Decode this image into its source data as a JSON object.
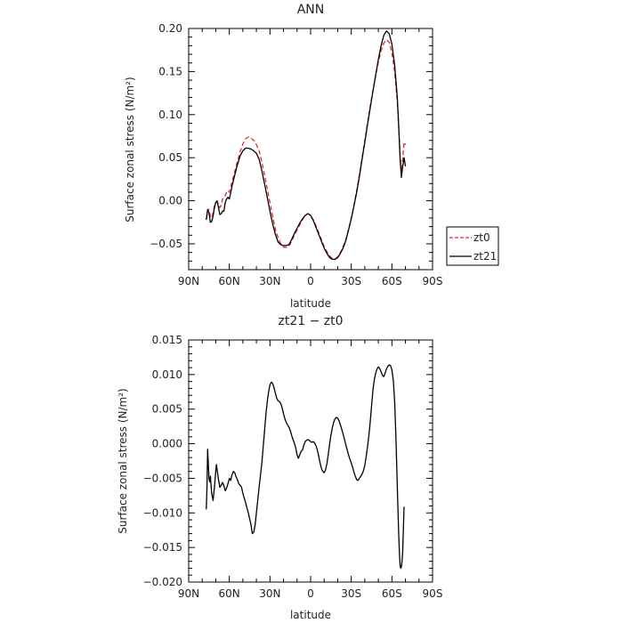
{
  "chart_data": [
    {
      "type": "line",
      "title": "ANN",
      "xlabel": "latitude",
      "ylabel": "Surface zonal stress (N/m²)",
      "xlim": [
        90,
        -90
      ],
      "ylim": [
        -0.08,
        0.2
      ],
      "x_ticks": [
        90,
        60,
        30,
        0,
        -30,
        -60,
        -90
      ],
      "x_tick_labels": [
        "90N",
        "60N",
        "30N",
        "0",
        "30S",
        "60S",
        "90S"
      ],
      "y_ticks": [
        -0.05,
        0.0,
        0.05,
        0.1,
        0.15,
        0.2
      ],
      "y_tick_labels": [
        "−0.05",
        "0.00",
        "0.05",
        "0.10",
        "0.15",
        "0.20"
      ],
      "legend_position": "outside-right-bottom",
      "series": [
        {
          "name": "zt0",
          "color": "#e8282c",
          "dash": "dashed",
          "x": [
            77,
            76,
            75,
            74,
            73,
            72,
            71,
            70,
            69,
            68,
            67,
            66,
            65,
            64,
            63,
            62,
            61,
            60,
            58,
            56,
            54,
            52,
            50,
            48,
            46,
            44,
            42,
            40,
            38,
            36,
            34,
            32,
            30,
            28,
            26,
            24,
            22,
            20,
            18,
            16,
            14,
            12,
            10,
            8,
            6,
            4,
            2,
            0,
            -2,
            -4,
            -6,
            -8,
            -10,
            -12,
            -14,
            -16,
            -18,
            -20,
            -22,
            -24,
            -26,
            -28,
            -30,
            -32,
            -34,
            -36,
            -38,
            -40,
            -42,
            -44,
            -46,
            -48,
            -50,
            -52,
            -54,
            -56,
            -58,
            -60,
            -62,
            -64,
            -65,
            -66,
            -67,
            -68,
            -69,
            -70
          ],
          "y": [
            -0.022,
            -0.012,
            -0.01,
            -0.018,
            -0.02,
            -0.014,
            -0.006,
            -0.003,
            -0.001,
            -0.004,
            -0.008,
            -0.005,
            0.002,
            0.004,
            0.006,
            0.01,
            0.012,
            0.01,
            0.022,
            0.034,
            0.046,
            0.057,
            0.066,
            0.072,
            0.074,
            0.073,
            0.07,
            0.065,
            0.058,
            0.045,
            0.03,
            0.014,
            -0.002,
            -0.018,
            -0.033,
            -0.043,
            -0.05,
            -0.054,
            -0.054,
            -0.053,
            -0.047,
            -0.04,
            -0.034,
            -0.028,
            -0.022,
            -0.017,
            -0.015,
            -0.017,
            -0.022,
            -0.029,
            -0.037,
            -0.045,
            -0.053,
            -0.059,
            -0.064,
            -0.067,
            -0.068,
            -0.065,
            -0.06,
            -0.053,
            -0.045,
            -0.033,
            -0.02,
            -0.005,
            0.012,
            0.03,
            0.05,
            0.07,
            0.09,
            0.11,
            0.128,
            0.145,
            0.161,
            0.174,
            0.183,
            0.187,
            0.184,
            0.172,
            0.15,
            0.115,
            0.088,
            0.055,
            0.03,
            0.048,
            0.068,
            0.065
          ]
        },
        {
          "name": "zt21",
          "color": "#000000",
          "dash": "solid",
          "x": [
            77,
            76,
            75,
            74,
            73,
            72,
            71,
            70,
            69,
            68,
            67,
            66,
            65,
            64,
            63,
            62,
            61,
            60,
            58,
            56,
            54,
            52,
            50,
            48,
            46,
            44,
            42,
            40,
            38,
            36,
            34,
            32,
            30,
            28,
            26,
            24,
            22,
            20,
            18,
            16,
            14,
            12,
            10,
            8,
            6,
            4,
            2,
            0,
            -2,
            -4,
            -6,
            -8,
            -10,
            -12,
            -14,
            -16,
            -18,
            -20,
            -22,
            -24,
            -26,
            -28,
            -30,
            -32,
            -34,
            -36,
            -38,
            -40,
            -42,
            -44,
            -46,
            -48,
            -50,
            -52,
            -54,
            -56,
            -58,
            -60,
            -62,
            -64,
            -65,
            -66,
            -67,
            -68,
            -69,
            -70
          ],
          "y": [
            -0.022,
            -0.01,
            -0.014,
            -0.025,
            -0.024,
            -0.018,
            -0.008,
            -0.002,
            0.0,
            -0.008,
            -0.016,
            -0.015,
            -0.012,
            -0.012,
            -0.002,
            0.002,
            0.004,
            0.002,
            0.017,
            0.03,
            0.042,
            0.052,
            0.058,
            0.061,
            0.061,
            0.06,
            0.058,
            0.055,
            0.048,
            0.035,
            0.02,
            0.004,
            -0.012,
            -0.027,
            -0.039,
            -0.048,
            -0.051,
            -0.052,
            -0.052,
            -0.051,
            -0.045,
            -0.038,
            -0.032,
            -0.026,
            -0.021,
            -0.017,
            -0.015,
            -0.017,
            -0.023,
            -0.031,
            -0.039,
            -0.047,
            -0.055,
            -0.061,
            -0.066,
            -0.068,
            -0.068,
            -0.066,
            -0.061,
            -0.055,
            -0.046,
            -0.034,
            -0.021,
            -0.006,
            0.01,
            0.028,
            0.048,
            0.068,
            0.088,
            0.108,
            0.127,
            0.146,
            0.164,
            0.18,
            0.192,
            0.197,
            0.194,
            0.182,
            0.158,
            0.12,
            0.088,
            0.05,
            0.027,
            0.04,
            0.05,
            0.04
          ]
        }
      ]
    },
    {
      "type": "line",
      "title": "zt21 − zt0",
      "xlabel": "latitude",
      "ylabel": "Surface zonal stress (N/m²)",
      "xlim": [
        90,
        -90
      ],
      "ylim": [
        -0.02,
        0.015
      ],
      "x_ticks": [
        90,
        60,
        30,
        0,
        -30,
        -60,
        -90
      ],
      "x_tick_labels": [
        "90N",
        "60N",
        "30N",
        "0",
        "30S",
        "60S",
        "90S"
      ],
      "y_ticks": [
        -0.02,
        -0.015,
        -0.01,
        -0.005,
        0.0,
        0.005,
        0.01,
        0.015
      ],
      "y_tick_labels": [
        "−0.020",
        "−0.015",
        "−0.010",
        "−0.005",
        "0.000",
        "0.005",
        "0.010",
        "0.015"
      ],
      "series": [
        {
          "name": "",
          "color": "#000000",
          "dash": "solid",
          "x": [
            77,
            76.5,
            76,
            75.5,
            75,
            74.5,
            74,
            73.5,
            73,
            72,
            71,
            70,
            69.5,
            69,
            68,
            67,
            66,
            65,
            64,
            63,
            62,
            61,
            60,
            59,
            58,
            57,
            56,
            55,
            54,
            53,
            52,
            51,
            50,
            48,
            46,
            44,
            43,
            42,
            41,
            40,
            38,
            36,
            34,
            33,
            32,
            31,
            30,
            29,
            28,
            27,
            26,
            25,
            24,
            23,
            22,
            21,
            20,
            19,
            18,
            17,
            16,
            15,
            14,
            13,
            12,
            11,
            10,
            9,
            8,
            7,
            6,
            5,
            4,
            3,
            2,
            1,
            0,
            -1,
            -2,
            -3,
            -4,
            -5,
            -6,
            -7,
            -8,
            -9,
            -10,
            -11,
            -12,
            -13,
            -14,
            -15,
            -16,
            -17,
            -18,
            -19,
            -20,
            -21,
            -22,
            -23,
            -24,
            -25,
            -26,
            -27,
            -28,
            -29,
            -30,
            -31,
            -32,
            -33,
            -34,
            -35,
            -36,
            -37,
            -38,
            -39,
            -40,
            -41,
            -42,
            -43,
            -44,
            -45,
            -46,
            -47,
            -48,
            -49,
            -50,
            -51,
            -52,
            -53,
            -54,
            -55,
            -56,
            -57,
            -58,
            -59,
            -60,
            -61,
            -62,
            -63,
            -64,
            -65,
            -65.5,
            -66,
            -66.5,
            -67,
            -67.5,
            -68,
            -69
          ],
          "y": [
            -0.0095,
            -0.006,
            -0.0008,
            -0.003,
            -0.005,
            -0.0055,
            -0.0047,
            -0.006,
            -0.0072,
            -0.0082,
            -0.0064,
            -0.004,
            -0.003,
            -0.0038,
            -0.0052,
            -0.0063,
            -0.006,
            -0.0056,
            -0.0061,
            -0.0068,
            -0.0064,
            -0.0058,
            -0.005,
            -0.0053,
            -0.0045,
            -0.004,
            -0.0042,
            -0.0048,
            -0.0052,
            -0.0058,
            -0.006,
            -0.0063,
            -0.0072,
            -0.0085,
            -0.01,
            -0.0117,
            -0.013,
            -0.0128,
            -0.0118,
            -0.01,
            -0.0062,
            -0.0028,
            0.0018,
            0.0043,
            0.0061,
            0.0075,
            0.0085,
            0.0089,
            0.0087,
            0.0081,
            0.0073,
            0.0066,
            0.0062,
            0.0061,
            0.0058,
            0.0052,
            0.0043,
            0.0036,
            0.0031,
            0.0027,
            0.0024,
            0.0019,
            0.0012,
            0.0006,
            0.0001,
            -0.0006,
            -0.0016,
            -0.0021,
            -0.0016,
            -0.0011,
            -0.0009,
            -0.0002,
            0.0003,
            0.0005,
            0.0006,
            0.0005,
            0.0003,
            0.0002,
            0.0003,
            0.0001,
            -0.0003,
            -0.0009,
            -0.0018,
            -0.0028,
            -0.0036,
            -0.004,
            -0.0042,
            -0.0038,
            -0.0029,
            -0.0016,
            -0.0001,
            0.0012,
            0.0023,
            0.0031,
            0.0036,
            0.0038,
            0.0037,
            0.0033,
            0.0027,
            0.0021,
            0.0014,
            0.0006,
            -0.0002,
            -0.0009,
            -0.0016,
            -0.0022,
            -0.0028,
            -0.0034,
            -0.0041,
            -0.0047,
            -0.0052,
            -0.0053,
            -0.005,
            -0.0047,
            -0.0044,
            -0.0039,
            -0.0031,
            -0.0019,
            -0.0005,
            0.0012,
            0.0032,
            0.0055,
            0.0077,
            0.0092,
            0.0102,
            0.0108,
            0.0111,
            0.0109,
            0.0104,
            0.0099,
            0.0097,
            0.0102,
            0.0108,
            0.0112,
            0.0114,
            0.0113,
            0.0107,
            0.0092,
            0.0062,
            0.0008,
            -0.0062,
            -0.0128,
            -0.0155,
            -0.0175,
            -0.018,
            -0.0178,
            -0.0169,
            -0.0155,
            -0.0091
          ]
        }
      ]
    }
  ]
}
